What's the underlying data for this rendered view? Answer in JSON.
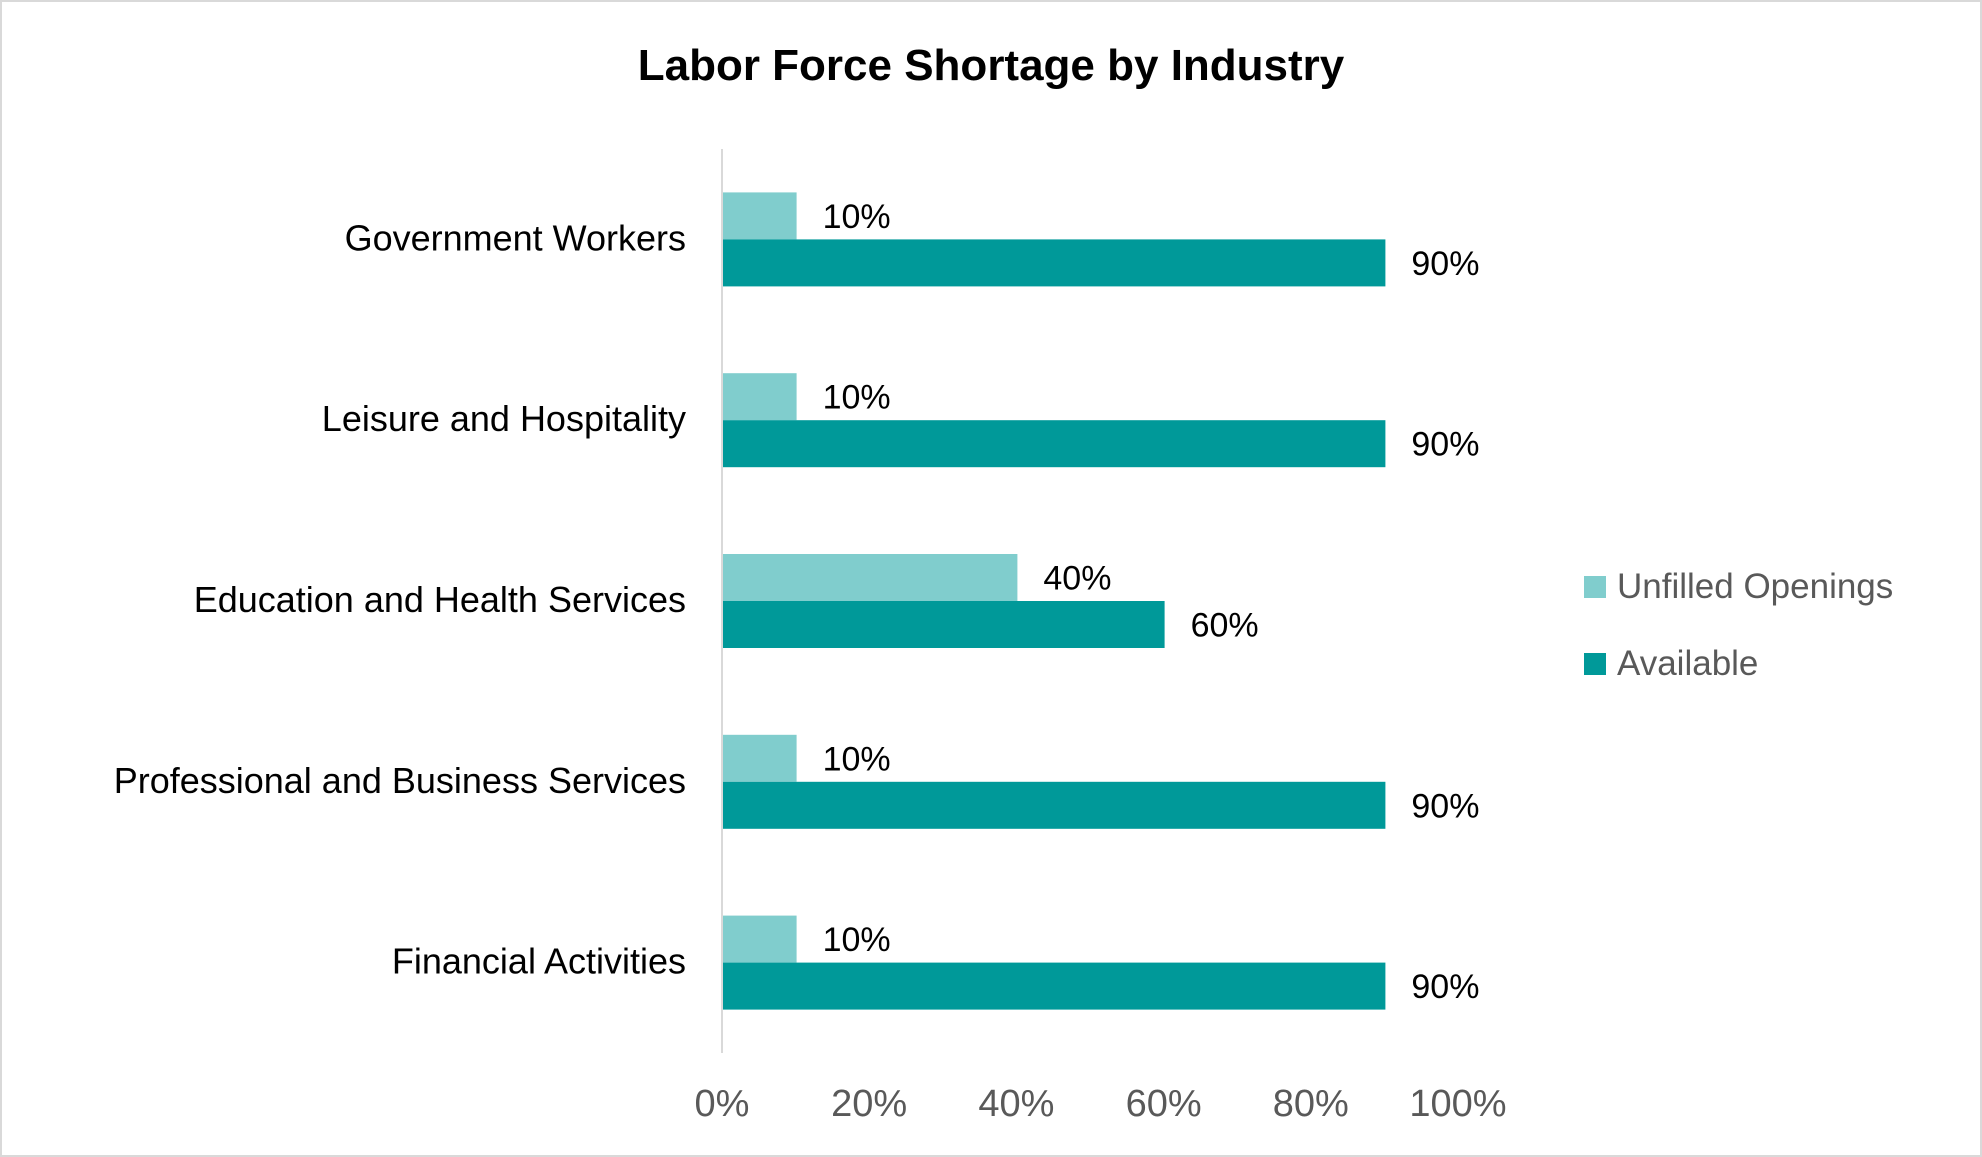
{
  "chart_data": {
    "type": "bar",
    "orientation": "horizontal",
    "title": "Labor Force Shortage by Industry",
    "categories": [
      "Government Workers",
      "Leisure and Hospitality",
      "Education and Health Services",
      "Professional and Business Services",
      "Financial Activities"
    ],
    "series": [
      {
        "name": "Unfilled Openings",
        "color": "#80CDCD",
        "values": [
          10,
          10,
          40,
          10,
          10
        ],
        "labels": [
          "10%",
          "10%",
          "40%",
          "10%",
          "10%"
        ]
      },
      {
        "name": "Available",
        "color": "#009999",
        "values": [
          90,
          90,
          60,
          90,
          90
        ],
        "labels": [
          "90%",
          "90%",
          "60%",
          "90%",
          "90%"
        ]
      }
    ],
    "xlim": [
      0,
      100
    ],
    "xticks": [
      "0%",
      "20%",
      "40%",
      "60%",
      "80%",
      "100%"
    ],
    "xlabel": "",
    "ylabel": "",
    "grid": false,
    "legend": "right"
  }
}
